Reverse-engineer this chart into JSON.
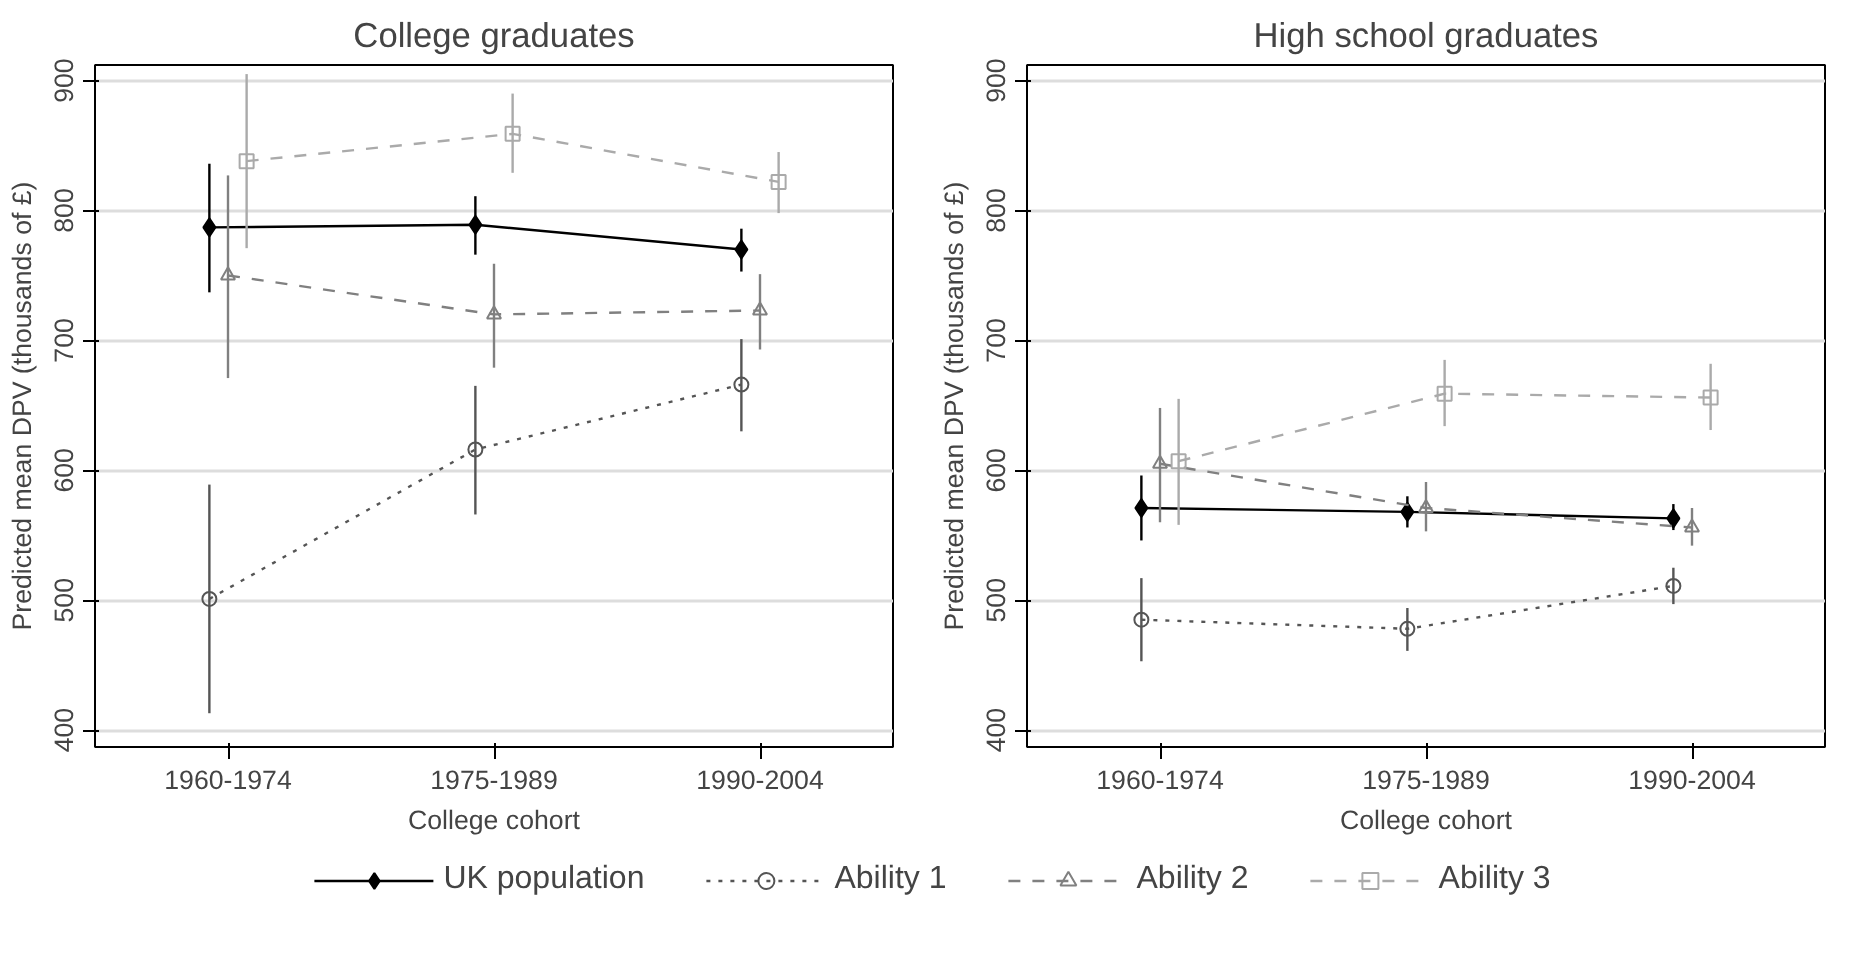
{
  "chart_data": [
    {
      "type": "line",
      "title": "College graduates",
      "xlabel": "College cohort",
      "ylabel": "Predicted mean DPV (thousands of £)",
      "categories": [
        "1960-1974",
        "1975-1989",
        "1990-2004"
      ],
      "ylim": [
        387,
        912
      ],
      "yticks": [
        400,
        500,
        600,
        700,
        800,
        900
      ],
      "grid": "y",
      "legend": "bottom",
      "series": [
        {
          "name": "UK population",
          "color": "#000000",
          "marker": "diamond",
          "line_style": "solid",
          "values": [
            787,
            789,
            770
          ],
          "errors": [
            [
              737,
              836
            ],
            [
              766,
              811
            ],
            [
              753,
              786
            ]
          ]
        },
        {
          "name": "Ability 1",
          "color": "#555555",
          "marker": "circle",
          "line_style": "dotted",
          "values": [
            501,
            616,
            666
          ],
          "errors": [
            [
              413,
              589
            ],
            [
              566,
              665
            ],
            [
              630,
              701
            ]
          ]
        },
        {
          "name": "Ability 2",
          "color": "#808080",
          "marker": "triangle",
          "line_style": "dashed",
          "values": [
            750,
            720,
            723
          ],
          "errors": [
            [
              671,
              827
            ],
            [
              679,
              759
            ],
            [
              693,
              751
            ]
          ]
        },
        {
          "name": "Ability 3",
          "color": "#aaaaaa",
          "marker": "square",
          "line_style": "dashed",
          "values": [
            838,
            859,
            822
          ],
          "errors": [
            [
              771,
              905
            ],
            [
              829,
              890
            ],
            [
              798,
              845
            ]
          ]
        }
      ]
    },
    {
      "type": "line",
      "title": "High school graduates",
      "xlabel": "College cohort",
      "ylabel": "Predicted mean DPV (thousands of £)",
      "categories": [
        "1960-1974",
        "1975-1989",
        "1990-2004"
      ],
      "ylim": [
        387,
        912
      ],
      "yticks": [
        400,
        500,
        600,
        700,
        800,
        900
      ],
      "grid": "y",
      "series": [
        {
          "color": "#000000",
          "marker": "diamond",
          "line_style": "solid",
          "values": [
            571,
            568,
            563
          ],
          "errors": [
            [
              546,
              596
            ],
            [
              556,
              580
            ],
            [
              554,
              574
            ]
          ]
        },
        {
          "color": "#555555",
          "marker": "circle",
          "line_style": "dotted",
          "values": [
            485,
            478,
            511
          ],
          "errors": [
            [
              453,
              517
            ],
            [
              461,
              494
            ],
            [
              497,
              525
            ]
          ]
        },
        {
          "color": "#808080",
          "marker": "triangle",
          "line_style": "dashed",
          "values": [
            605,
            571,
            556
          ],
          "errors": [
            [
              560,
              648
            ],
            [
              553,
              591
            ],
            [
              542,
              571
            ]
          ]
        },
        {
          "color": "#aaaaaa",
          "marker": "square",
          "line_style": "dashed",
          "values": [
            607,
            659,
            656
          ],
          "errors": [
            [
              558,
              655
            ],
            [
              634,
              685
            ],
            [
              631,
              682
            ]
          ]
        }
      ]
    }
  ]
}
